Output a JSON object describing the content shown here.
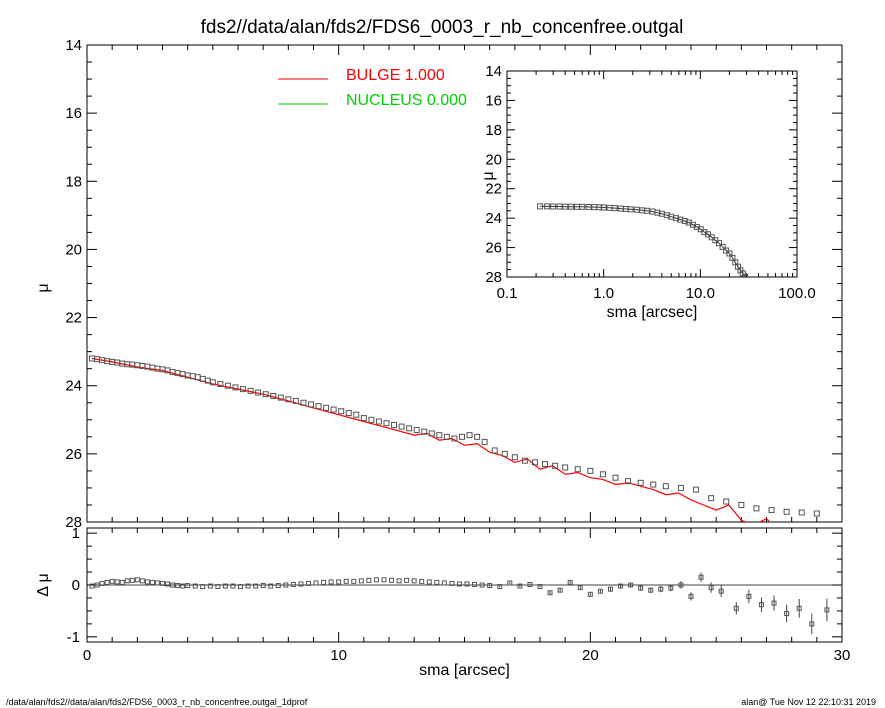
{
  "title": "fds2//data/alan/fds2/FDS6_0003_r_nb_concenfree.outgal",
  "footer": {
    "left": "/data/alan/fds2//data/alan/fds2/FDS6_0003_r_nb_concenfree.outgal_1dprof",
    "right": "alan@  Tue Nov 12 22:10:31 2019"
  },
  "legend": [
    {
      "label": "BULGE  1.000",
      "color": "#ff0000"
    },
    {
      "label": "NUCLEUS  0.000",
      "color": "#00d000"
    }
  ],
  "chart_data": [
    {
      "type": "scatter",
      "panel": "main",
      "xlabel": "",
      "ylabel": "μ",
      "xlim": [
        0,
        30
      ],
      "ylim": [
        28,
        14
      ],
      "y_inverted": true,
      "x_ticks": [
        "0",
        "10",
        "20",
        "30"
      ],
      "y_ticks": [
        "14",
        "16",
        "18",
        "20",
        "22",
        "24",
        "26",
        "28"
      ],
      "series": [
        {
          "name": "data",
          "marker": "open-square",
          "color": "#555555",
          "x": [
            0.2,
            0.4,
            0.6,
            0.8,
            1.0,
            1.2,
            1.4,
            1.6,
            1.8,
            2.0,
            2.2,
            2.4,
            2.6,
            2.8,
            3.0,
            3.2,
            3.4,
            3.6,
            3.8,
            4.0,
            4.2,
            4.4,
            4.6,
            4.8,
            5.0,
            5.3,
            5.6,
            5.9,
            6.2,
            6.5,
            6.8,
            7.1,
            7.4,
            7.7,
            8.0,
            8.3,
            8.6,
            8.9,
            9.2,
            9.5,
            9.8,
            10.1,
            10.4,
            10.7,
            11.0,
            11.3,
            11.6,
            11.9,
            12.2,
            12.5,
            12.8,
            13.1,
            13.4,
            13.7,
            14.0,
            14.3,
            14.6,
            14.9,
            15.2,
            15.5,
            15.8,
            16.2,
            16.6,
            17.0,
            17.4,
            17.8,
            18.2,
            18.6,
            19.0,
            19.5,
            20.0,
            20.5,
            21.0,
            21.5,
            22.0,
            22.5,
            23.0,
            23.6,
            24.2,
            24.8,
            25.4,
            26.0,
            26.6,
            27.2,
            27.8,
            28.4,
            29.0
          ],
          "y": [
            23.2,
            23.22,
            23.25,
            23.28,
            23.3,
            23.32,
            23.35,
            23.37,
            23.38,
            23.4,
            23.42,
            23.44,
            23.47,
            23.5,
            23.52,
            23.55,
            23.6,
            23.63,
            23.66,
            23.7,
            23.72,
            23.75,
            23.8,
            23.85,
            23.9,
            23.95,
            24.0,
            24.05,
            24.1,
            24.15,
            24.2,
            24.25,
            24.3,
            24.35,
            24.4,
            24.45,
            24.5,
            24.55,
            24.6,
            24.65,
            24.7,
            24.75,
            24.8,
            24.85,
            24.95,
            25.0,
            25.05,
            25.1,
            25.15,
            25.2,
            25.25,
            25.3,
            25.35,
            25.4,
            25.45,
            25.5,
            25.55,
            25.5,
            25.45,
            25.5,
            25.65,
            25.9,
            26.0,
            26.1,
            26.2,
            26.25,
            26.3,
            26.35,
            26.4,
            26.45,
            26.5,
            26.6,
            26.7,
            26.8,
            26.85,
            26.9,
            26.95,
            27.0,
            27.05,
            27.3,
            27.4,
            27.5,
            27.6,
            27.65,
            27.7,
            27.72,
            27.75
          ]
        },
        {
          "name": "BULGE",
          "marker": "line",
          "color": "#ff0000",
          "x": [
            0.2,
            1.0,
            2.0,
            2.5,
            3.0,
            3.5,
            4.0,
            5.0,
            6.0,
            7.0,
            8.0,
            9.0,
            10.0,
            11.0,
            12.0,
            13.0,
            13.5,
            14.0,
            14.5,
            15.0,
            15.5,
            16.0,
            16.5,
            17.0,
            17.5,
            18.0,
            18.5,
            19.0,
            19.5,
            20.0,
            20.5,
            21.0,
            21.5,
            22.0,
            22.5,
            23.0,
            23.5,
            24.0,
            24.5,
            25.0,
            25.5,
            26.0,
            26.5,
            27.0,
            27.5
          ],
          "y": [
            23.2,
            23.3,
            23.45,
            23.5,
            23.55,
            23.65,
            23.75,
            23.95,
            24.1,
            24.25,
            24.45,
            24.65,
            24.85,
            25.05,
            25.25,
            25.45,
            25.4,
            25.6,
            25.55,
            25.75,
            25.7,
            25.95,
            26.05,
            26.25,
            26.15,
            26.45,
            26.35,
            26.6,
            26.55,
            26.7,
            26.75,
            26.9,
            26.85,
            26.95,
            27.05,
            27.2,
            27.15,
            27.35,
            27.5,
            27.65,
            27.5,
            27.95,
            28.1,
            27.9,
            28.3
          ]
        }
      ]
    },
    {
      "type": "scatter",
      "panel": "residual",
      "xlabel": "sma [arcsec]",
      "ylabel": "Δ μ",
      "xlim": [
        0,
        30
      ],
      "ylim": [
        -1.1,
        1.1
      ],
      "x_ticks": [
        "0",
        "10",
        "20",
        "30"
      ],
      "y_ticks": [
        "1",
        "0",
        "-1"
      ],
      "reference_line": 0,
      "series": [
        {
          "name": "residual",
          "marker": "open-square",
          "color": "#555555",
          "x": [
            0.2,
            0.4,
            0.6,
            0.8,
            1.0,
            1.2,
            1.4,
            1.6,
            1.8,
            2.0,
            2.2,
            2.4,
            2.6,
            2.8,
            3.0,
            3.2,
            3.4,
            3.6,
            3.8,
            4.0,
            4.3,
            4.6,
            4.9,
            5.2,
            5.5,
            5.8,
            6.1,
            6.4,
            6.7,
            7.0,
            7.3,
            7.6,
            7.9,
            8.2,
            8.5,
            8.8,
            9.1,
            9.4,
            9.7,
            10.0,
            10.3,
            10.6,
            10.9,
            11.2,
            11.5,
            11.8,
            12.1,
            12.4,
            12.7,
            13.0,
            13.3,
            13.6,
            13.9,
            14.2,
            14.5,
            14.8,
            15.1,
            15.4,
            15.7,
            16.0,
            16.4,
            16.8,
            17.2,
            17.6,
            18.0,
            18.4,
            18.8,
            19.2,
            19.6,
            20.0,
            20.4,
            20.8,
            21.2,
            21.6,
            22.0,
            22.4,
            22.8,
            23.2,
            23.6,
            24.0,
            24.4,
            24.8,
            25.2,
            25.8,
            26.3,
            26.8,
            27.3,
            27.8,
            28.3,
            28.8,
            29.4
          ],
          "y": [
            -0.02,
            0.0,
            0.03,
            0.05,
            0.07,
            0.06,
            0.05,
            0.08,
            0.09,
            0.1,
            0.08,
            0.06,
            0.05,
            0.04,
            0.03,
            0.02,
            0.0,
            -0.01,
            -0.02,
            -0.01,
            -0.02,
            -0.03,
            -0.02,
            -0.03,
            -0.02,
            -0.02,
            -0.03,
            -0.02,
            -0.02,
            -0.01,
            -0.02,
            -0.01,
            0.0,
            0.01,
            0.02,
            0.03,
            0.04,
            0.05,
            0.06,
            0.06,
            0.07,
            0.07,
            0.08,
            0.09,
            0.1,
            0.1,
            0.09,
            0.08,
            0.09,
            0.08,
            0.07,
            0.06,
            0.05,
            0.04,
            0.03,
            0.02,
            0.02,
            0.01,
            0.0,
            -0.01,
            -0.03,
            0.04,
            -0.02,
            0.01,
            -0.03,
            -0.15,
            -0.1,
            0.05,
            -0.05,
            -0.18,
            -0.12,
            -0.08,
            -0.02,
            0.0,
            -0.06,
            -0.1,
            -0.08,
            -0.06,
            0.0,
            -0.22,
            0.15,
            -0.05,
            -0.12,
            -0.45,
            -0.22,
            -0.38,
            -0.35,
            -0.55,
            -0.45,
            -0.75,
            -0.48
          ],
          "err": [
            0.01,
            0.01,
            0.01,
            0.01,
            0.01,
            0.01,
            0.01,
            0.01,
            0.01,
            0.01,
            0.01,
            0.01,
            0.01,
            0.01,
            0.01,
            0.01,
            0.01,
            0.01,
            0.01,
            0.01,
            0.01,
            0.01,
            0.01,
            0.01,
            0.01,
            0.01,
            0.01,
            0.01,
            0.01,
            0.01,
            0.01,
            0.01,
            0.01,
            0.01,
            0.01,
            0.01,
            0.01,
            0.01,
            0.01,
            0.01,
            0.01,
            0.01,
            0.01,
            0.01,
            0.01,
            0.01,
            0.01,
            0.01,
            0.01,
            0.01,
            0.01,
            0.01,
            0.01,
            0.01,
            0.01,
            0.01,
            0.01,
            0.01,
            0.01,
            0.02,
            0.02,
            0.02,
            0.02,
            0.02,
            0.02,
            0.03,
            0.03,
            0.03,
            0.03,
            0.03,
            0.04,
            0.04,
            0.04,
            0.04,
            0.05,
            0.05,
            0.06,
            0.06,
            0.07,
            0.08,
            0.09,
            0.1,
            0.11,
            0.12,
            0.13,
            0.14,
            0.15,
            0.17,
            0.18,
            0.2,
            0.22
          ]
        }
      ]
    },
    {
      "type": "scatter",
      "panel": "inset",
      "xlabel": "sma [arcsec]",
      "ylabel": "μ",
      "x_scale": "log",
      "xlim": [
        0.1,
        100.0
      ],
      "ylim": [
        28,
        14
      ],
      "y_inverted": true,
      "x_ticks": [
        "0.1",
        "1.0",
        "10.0",
        "100.0"
      ],
      "y_ticks": [
        "14",
        "16",
        "18",
        "20",
        "22",
        "24",
        "26",
        "28"
      ],
      "series": [
        {
          "name": "data",
          "marker": "open-square",
          "color": "#555555",
          "x": [
            0.22,
            0.26,
            0.3,
            0.35,
            0.4,
            0.46,
            0.53,
            0.6,
            0.7,
            0.8,
            0.9,
            1.0,
            1.15,
            1.3,
            1.5,
            1.7,
            1.9,
            2.2,
            2.5,
            2.8,
            3.2,
            3.6,
            4.0,
            4.5,
            5.0,
            5.6,
            6.2,
            6.9,
            7.6,
            8.4,
            9.2,
            10.1,
            11.0,
            12.0,
            13.1,
            14.3,
            15.6,
            17.0,
            18.5,
            20.0,
            21.5,
            23.0,
            24.5,
            26.0,
            27.5,
            29.0
          ],
          "y": [
            23.2,
            23.2,
            23.21,
            23.21,
            23.22,
            23.22,
            23.23,
            23.23,
            23.24,
            23.25,
            23.26,
            23.28,
            23.3,
            23.32,
            23.35,
            23.38,
            23.4,
            23.43,
            23.47,
            23.5,
            23.55,
            23.63,
            23.7,
            23.8,
            23.9,
            24.0,
            24.1,
            24.2,
            24.3,
            24.45,
            24.6,
            24.75,
            24.95,
            25.1,
            25.3,
            25.5,
            25.7,
            25.95,
            26.2,
            26.4,
            26.7,
            27.0,
            27.3,
            27.55,
            27.75,
            28.0
          ]
        }
      ]
    }
  ]
}
